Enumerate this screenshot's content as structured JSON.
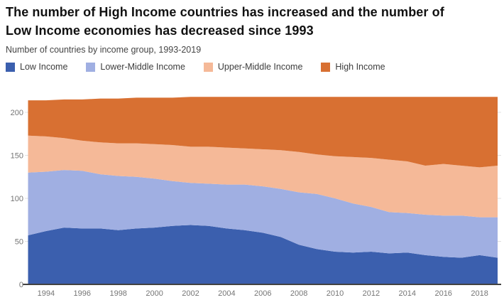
{
  "header": {
    "title_line1": "The number of High Income countries has increased and the number of",
    "title_line2": "Low Income economies has decreased since 1993",
    "subtitle": "Number of countries by income group, 1993-2019"
  },
  "colors": {
    "background": "#ffffff",
    "title_text": "#111111",
    "subtitle_text": "#454545",
    "axis_line": "#424242",
    "grid_line": "#e0e0e0",
    "tick_text": "#757575"
  },
  "chart_data": {
    "type": "area",
    "stacked": true,
    "title": "The number of High Income countries has increased and the number of Low Income economies has decreased since 1993",
    "subtitle": "Number of countries by income group, 1993-2019",
    "xlabel": "",
    "ylabel": "",
    "x": [
      1993,
      1994,
      1995,
      1996,
      1997,
      1998,
      1999,
      2000,
      2001,
      2002,
      2003,
      2004,
      2005,
      2006,
      2007,
      2008,
      2009,
      2010,
      2011,
      2012,
      2013,
      2014,
      2015,
      2016,
      2017,
      2018,
      2019
    ],
    "x_tick_labels": [
      "1994",
      "1996",
      "1998",
      "2000",
      "2002",
      "2004",
      "2006",
      "2008",
      "2010",
      "2012",
      "2014",
      "2016",
      "2018"
    ],
    "y_ticks": [
      0,
      50,
      100,
      150,
      200
    ],
    "ylim": [
      0,
      222
    ],
    "legend_position": "top",
    "grid": true,
    "series": [
      {
        "name": "Low Income",
        "color": "#3b5fae",
        "values": [
          57,
          62,
          66,
          65,
          65,
          63,
          65,
          66,
          68,
          69,
          68,
          65,
          63,
          60,
          55,
          46,
          41,
          38,
          37,
          38,
          36,
          37,
          34,
          32,
          31,
          34,
          31
        ]
      },
      {
        "name": "Lower-Middle Income",
        "color": "#a0afe2",
        "values": [
          73,
          69,
          67,
          67,
          63,
          63,
          60,
          57,
          52,
          49,
          49,
          51,
          53,
          54,
          56,
          61,
          64,
          62,
          57,
          52,
          48,
          46,
          47,
          48,
          49,
          44,
          47
        ]
      },
      {
        "name": "Upper-Middle Income",
        "color": "#f5b998",
        "values": [
          43,
          41,
          37,
          35,
          37,
          38,
          39,
          40,
          42,
          42,
          43,
          43,
          42,
          43,
          45,
          47,
          46,
          49,
          54,
          57,
          61,
          60,
          57,
          60,
          58,
          58,
          60
        ]
      },
      {
        "name": "High Income",
        "color": "#d87032",
        "values": [
          41,
          42,
          45,
          48,
          51,
          52,
          53,
          54,
          55,
          58,
          58,
          59,
          60,
          61,
          62,
          64,
          67,
          69,
          70,
          71,
          73,
          75,
          80,
          78,
          80,
          82,
          80
        ]
      }
    ]
  }
}
